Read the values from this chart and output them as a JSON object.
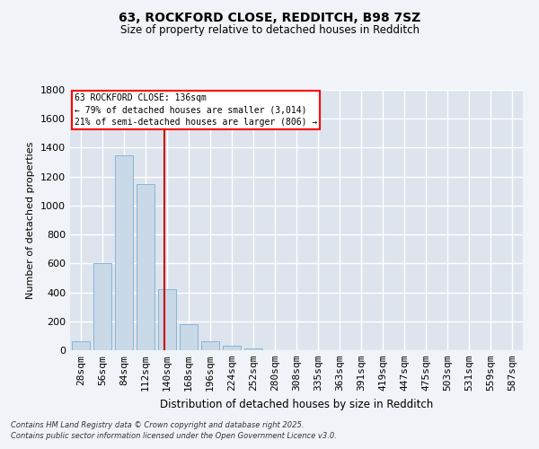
{
  "title1": "63, ROCKFORD CLOSE, REDDITCH, B98 7SZ",
  "title2": "Size of property relative to detached houses in Redditch",
  "xlabel": "Distribution of detached houses by size in Redditch",
  "ylabel": "Number of detached properties",
  "annotation_title": "63 ROCKFORD CLOSE: 136sqm",
  "annotation_line1": "← 79% of detached houses are smaller (3,014)",
  "annotation_line2": "21% of semi-detached houses are larger (806) →",
  "bin_labels": [
    "28sqm",
    "56sqm",
    "84sqm",
    "112sqm",
    "140sqm",
    "168sqm",
    "196sqm",
    "224sqm",
    "252sqm",
    "280sqm",
    "308sqm",
    "335sqm",
    "363sqm",
    "391sqm",
    "419sqm",
    "447sqm",
    "475sqm",
    "503sqm",
    "531sqm",
    "559sqm",
    "587sqm"
  ],
  "bin_values": [
    60,
    600,
    1350,
    1150,
    420,
    180,
    60,
    30,
    10,
    2,
    0,
    0,
    0,
    0,
    0,
    0,
    0,
    0,
    0,
    0,
    0
  ],
  "bar_color": "#c9d9e8",
  "bar_edge_color": "#7bafd4",
  "red_line_color": "#cc0000",
  "ylim": [
    0,
    1800
  ],
  "yticks": [
    0,
    200,
    400,
    600,
    800,
    1000,
    1200,
    1400,
    1600,
    1800
  ],
  "bg_color": "#dde4ed",
  "grid_color": "#ffffff",
  "fig_bg_color": "#f0f4f8",
  "footer1": "Contains HM Land Registry data © Crown copyright and database right 2025.",
  "footer2": "Contains public sector information licensed under the Open Government Licence v3.0."
}
